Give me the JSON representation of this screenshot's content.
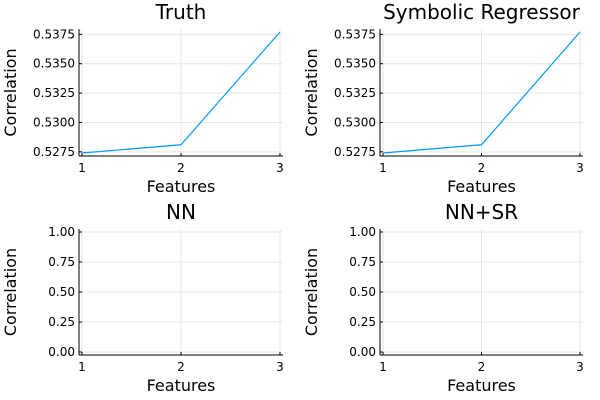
{
  "figure": {
    "line_color": "#009AFA",
    "grid": true,
    "legend": "none"
  },
  "chart_data": [
    {
      "type": "line",
      "title": "Truth",
      "xlabel": "Features",
      "ylabel": "Correlation",
      "x": [
        1,
        2,
        3
      ],
      "series": [
        {
          "values": [
            0.5274,
            0.5281,
            0.5377
          ]
        }
      ],
      "xlim": [
        1,
        3
      ],
      "ylim": [
        0.5274,
        0.5377
      ],
      "xticks": [
        1,
        2,
        3
      ],
      "xtick_labels": [
        "1",
        "2",
        "3"
      ],
      "yticks": [
        0.5275,
        0.53,
        0.5325,
        0.535,
        0.5375
      ],
      "ytick_labels": [
        "0.5275",
        "0.5300",
        "0.5325",
        "0.5350",
        "0.5375"
      ]
    },
    {
      "type": "line",
      "title": "Symbolic Regressor",
      "xlabel": "Features",
      "ylabel": "Correlation",
      "x": [
        1,
        2,
        3
      ],
      "series": [
        {
          "values": [
            0.5274,
            0.5281,
            0.5377
          ]
        }
      ],
      "xlim": [
        1,
        3
      ],
      "ylim": [
        0.5274,
        0.5377
      ],
      "xticks": [
        1,
        2,
        3
      ],
      "xtick_labels": [
        "1",
        "2",
        "3"
      ],
      "yticks": [
        0.5275,
        0.53,
        0.5325,
        0.535,
        0.5375
      ],
      "ytick_labels": [
        "0.5275",
        "0.5300",
        "0.5325",
        "0.5350",
        "0.5375"
      ]
    },
    {
      "type": "line",
      "title": "NN",
      "xlabel": "Features",
      "ylabel": "Correlation",
      "x": [
        1,
        2,
        3
      ],
      "series": [],
      "xlim": [
        1,
        3
      ],
      "ylim": [
        0,
        1
      ],
      "xticks": [
        1,
        2,
        3
      ],
      "xtick_labels": [
        "1",
        "2",
        "3"
      ],
      "yticks": [
        0,
        0.25,
        0.5,
        0.75,
        1
      ],
      "ytick_labels": [
        "0.00",
        "0.25",
        "0.50",
        "0.75",
        "1.00"
      ]
    },
    {
      "type": "line",
      "title": "NN+SR",
      "xlabel": "Features",
      "ylabel": "Correlation",
      "x": [
        1,
        2,
        3
      ],
      "series": [],
      "xlim": [
        1,
        3
      ],
      "ylim": [
        0,
        1
      ],
      "xticks": [
        1,
        2,
        3
      ],
      "xtick_labels": [
        "1",
        "2",
        "3"
      ],
      "yticks": [
        0,
        0.25,
        0.5,
        0.75,
        1
      ],
      "ytick_labels": [
        "0.00",
        "0.25",
        "0.50",
        "0.75",
        "1.00"
      ]
    }
  ]
}
